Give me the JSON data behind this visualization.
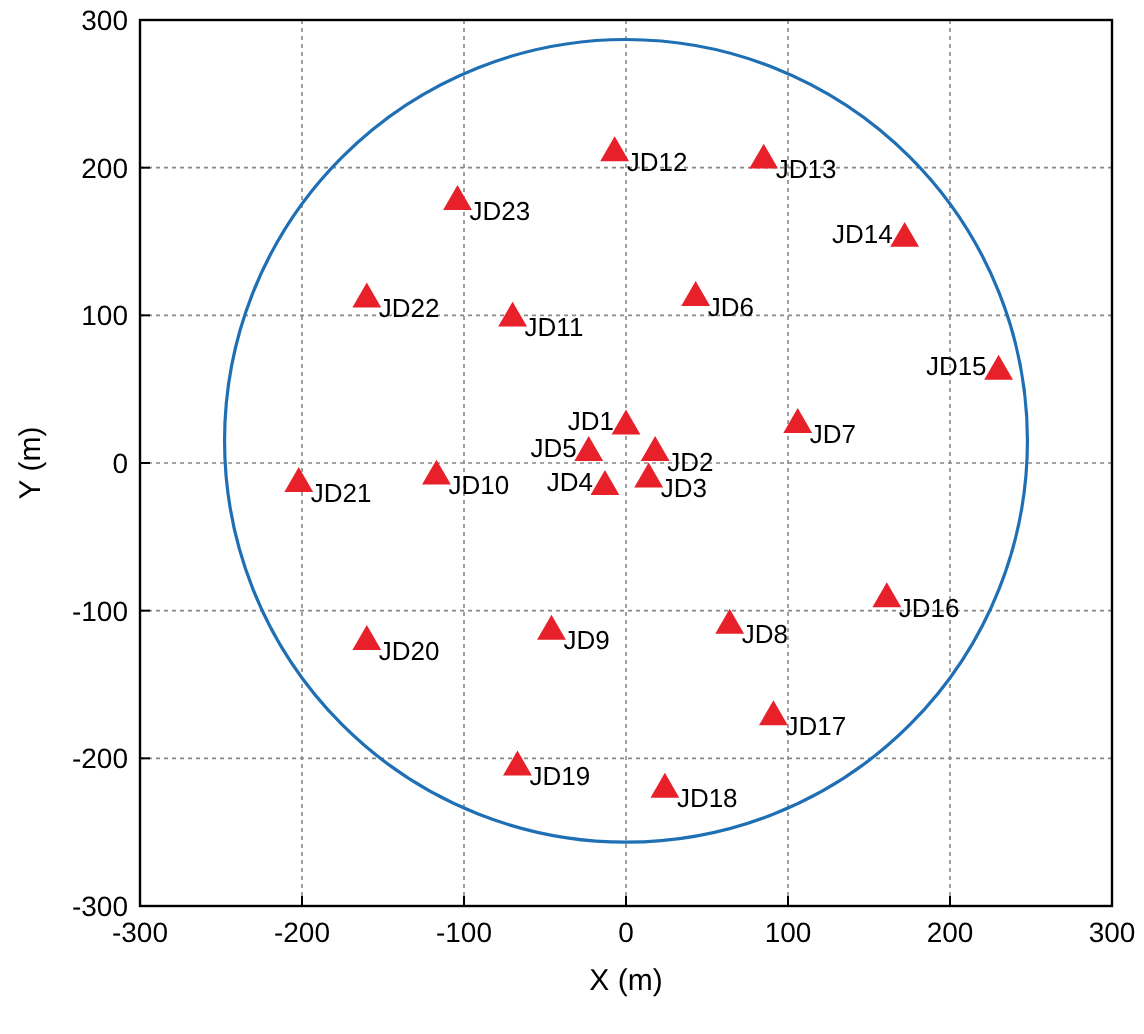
{
  "chart_data": {
    "type": "scatter",
    "xlabel": "X (m)",
    "ylabel": "Y (m)",
    "xlim": [
      -300,
      300
    ],
    "ylim": [
      -300,
      300
    ],
    "xticks": [
      -300,
      -200,
      -100,
      0,
      100,
      200,
      300
    ],
    "yticks": [
      -300,
      -200,
      -100,
      0,
      100,
      200,
      300
    ],
    "grid": true,
    "marker": "triangle",
    "series": [
      {
        "color": "#e8202a",
        "x": [
          0,
          18,
          14,
          -13,
          -23,
          43,
          106,
          64,
          -46,
          -117,
          -70,
          -7,
          85,
          172,
          230,
          161,
          91,
          24,
          -67,
          -160,
          -202,
          -160,
          -104
        ],
        "values": [
          25,
          7,
          -11,
          -16,
          7,
          112,
          26,
          -110,
          -114,
          -9,
          98,
          210,
          205,
          152,
          62,
          -92,
          -172,
          -221,
          -206,
          -121,
          -14,
          111,
          177
        ]
      }
    ],
    "annotations": [
      {
        "text": "JD1",
        "x": 0,
        "y": 25
      },
      {
        "text": "JD2",
        "x": 18,
        "y": 7
      },
      {
        "text": "JD3",
        "x": 14,
        "y": -11
      },
      {
        "text": "JD4",
        "x": -13,
        "y": -16
      },
      {
        "text": "JD5",
        "x": -23,
        "y": 7
      },
      {
        "text": "JD6",
        "x": 43,
        "y": 112
      },
      {
        "text": "JD7",
        "x": 106,
        "y": 26
      },
      {
        "text": "JD8",
        "x": 64,
        "y": -110
      },
      {
        "text": "JD9",
        "x": -46,
        "y": -114
      },
      {
        "text": "JD10",
        "x": -117,
        "y": -9
      },
      {
        "text": "JD11",
        "x": -70,
        "y": 98
      },
      {
        "text": "JD12",
        "x": -7,
        "y": 210
      },
      {
        "text": "JD13",
        "x": 85,
        "y": 205
      },
      {
        "text": "JD14",
        "x": 172,
        "y": 152
      },
      {
        "text": "JD15",
        "x": 230,
        "y": 62
      },
      {
        "text": "JD16",
        "x": 161,
        "y": -92
      },
      {
        "text": "JD17",
        "x": 91,
        "y": -172
      },
      {
        "text": "JD18",
        "x": 24,
        "y": -221
      },
      {
        "text": "JD19",
        "x": -67,
        "y": -206
      },
      {
        "text": "JD20",
        "x": -160,
        "y": -121
      },
      {
        "text": "JD21",
        "x": -202,
        "y": -14
      },
      {
        "text": "JD22",
        "x": -160,
        "y": 111
      },
      {
        "text": "JD23",
        "x": -104,
        "y": 177
      }
    ]
  }
}
